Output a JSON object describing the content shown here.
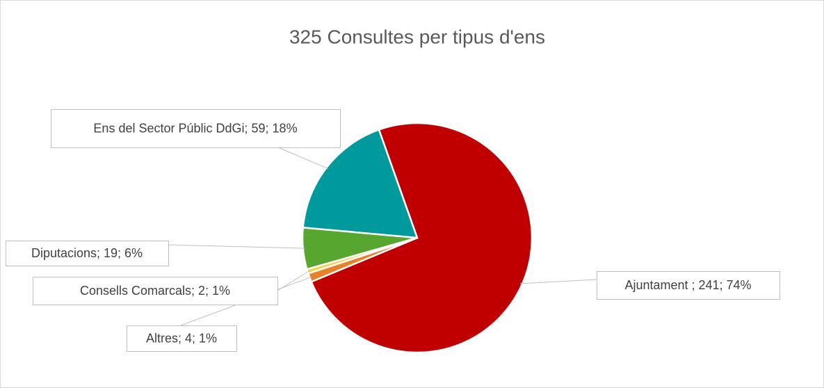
{
  "chart_data": {
    "type": "pie",
    "title": "325 Consultes per tipus d'ens",
    "values": [
      241,
      4,
      2,
      19,
      59
    ],
    "value_labels": [
      "Ajuntament ; 241; 74%",
      "Altres; 4; 1%",
      "Consells Comarcals; 2; 1%",
      "Diputacions; 19; 6%",
      "Ens del Sector Públic DdGi; 59; 18%"
    ],
    "colors": [
      "#c00000",
      "#e8822a",
      "#f2d24b",
      "#56a630",
      "#00999c"
    ]
  }
}
